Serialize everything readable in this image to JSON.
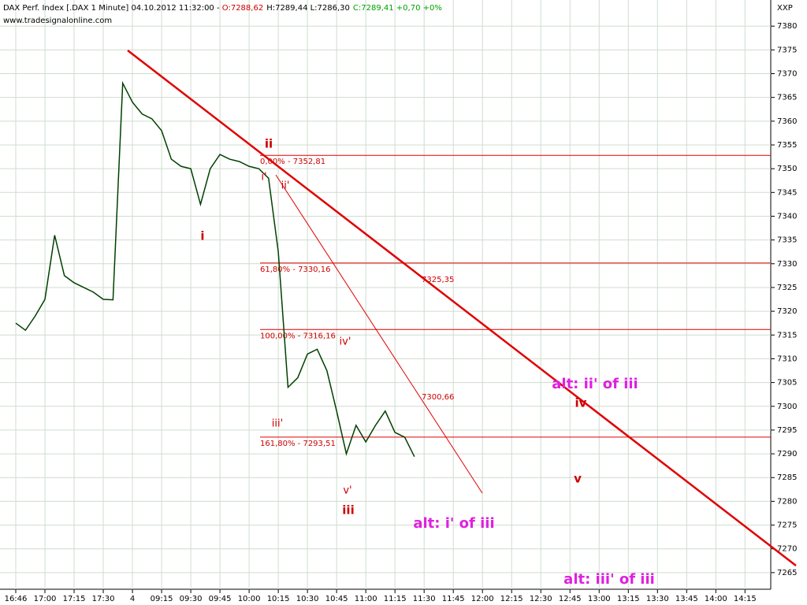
{
  "chart_data": {
    "type": "line",
    "title": "DAX Perf. Index [.DAX  1 Minute] 04.10.2012 11:32:00 - ",
    "open": "O:7288,62",
    "high_low": "H:7289,44 L:7286,30",
    "close": "C:7289,41 +0,70 +0%",
    "source": "www.tradesignalonline.com",
    "exchange": "XXP",
    "categories": [
      "16:46",
      null,
      null,
      "17:00",
      null,
      null,
      "17:15",
      null,
      null,
      "17:30",
      null,
      null,
      "4",
      null,
      null,
      "09:15",
      null,
      null,
      "09:30",
      null,
      null,
      "09:45",
      null,
      null,
      "10:00",
      null,
      null,
      "10:15",
      null,
      null,
      "10:30",
      null,
      null,
      "10:45",
      null,
      null,
      "11:00",
      null,
      null,
      "11:15",
      null,
      null,
      "11:30",
      null,
      null,
      "11:45",
      null,
      null,
      "12:00",
      null,
      null,
      "12:15",
      null,
      null,
      "12:30",
      null,
      null,
      "12:45",
      null,
      null,
      "13:00",
      null,
      null,
      "13:15",
      null,
      null,
      "13:30",
      null,
      null,
      "13:45",
      null,
      null,
      "14:00",
      null,
      null,
      "14:15",
      null,
      null
    ],
    "series": [
      {
        "name": "DAX",
        "color": "#004000",
        "values": [
          7317.5,
          7316,
          7319,
          7322.5,
          7336,
          7327.5,
          7326,
          7325,
          7324,
          7322.5,
          7322.4,
          7368,
          7364,
          7361.5,
          7360.5,
          7358,
          7352,
          7350.5,
          7350,
          7342.5,
          7350,
          7353,
          7352,
          7351.5,
          7350.5,
          7350,
          7348,
          7332.5,
          7304,
          7306,
          7311,
          7312,
          7307.5,
          7299,
          7290,
          7296,
          7292.5,
          7296,
          7299,
          7294.5,
          7293.5,
          7289.4,
          null,
          null,
          null,
          null,
          null,
          null,
          null,
          null,
          null,
          null,
          null,
          null,
          null,
          null,
          null,
          null,
          null,
          null,
          null,
          null,
          null,
          null,
          null,
          null,
          null,
          null,
          null,
          null,
          null,
          null,
          null,
          null,
          null,
          null,
          null,
          null
        ]
      }
    ],
    "ylim": [
      7261.5,
      7385.5
    ],
    "yticks": [
      7265,
      7270,
      7275,
      7280,
      7285,
      7290,
      7295,
      7300,
      7305,
      7310,
      7315,
      7320,
      7325,
      7330,
      7335,
      7340,
      7345,
      7350,
      7355,
      7360,
      7365,
      7370,
      7375,
      7380
    ],
    "grid": true,
    "levels": [
      {
        "value": 7352.81,
        "label": "0,00% - 7352,81"
      },
      {
        "value": 7330.16,
        "label": "61,80% - 7330,16"
      },
      {
        "value": 7316.16,
        "label": "100,00% - 7316,16"
      },
      {
        "value": 7293.51,
        "label": "161,80% - 7293,51"
      }
    ],
    "trendline_labels": [
      "7325,35",
      "7300,66"
    ],
    "annotations": [
      {
        "text": "ii",
        "color": "#cc0000"
      },
      {
        "text": "i",
        "color": "#cc0000"
      },
      {
        "text": "i'",
        "color": "#cc0000"
      },
      {
        "text": "ii'",
        "color": "#cc0000"
      },
      {
        "text": "iii'",
        "color": "#cc0000"
      },
      {
        "text": "iv'",
        "color": "#cc0000"
      },
      {
        "text": "v'",
        "color": "#cc0000"
      },
      {
        "text": "iii",
        "color": "#cc0000"
      },
      {
        "text": "iv",
        "color": "#cc0000"
      },
      {
        "text": "v",
        "color": "#cc0000"
      },
      {
        "text": "alt: ii' of iii",
        "color": "#e020e0"
      },
      {
        "text": "alt: i' of iii",
        "color": "#e020e0"
      },
      {
        "text": "alt: iii' of iii",
        "color": "#e020e0"
      }
    ]
  }
}
